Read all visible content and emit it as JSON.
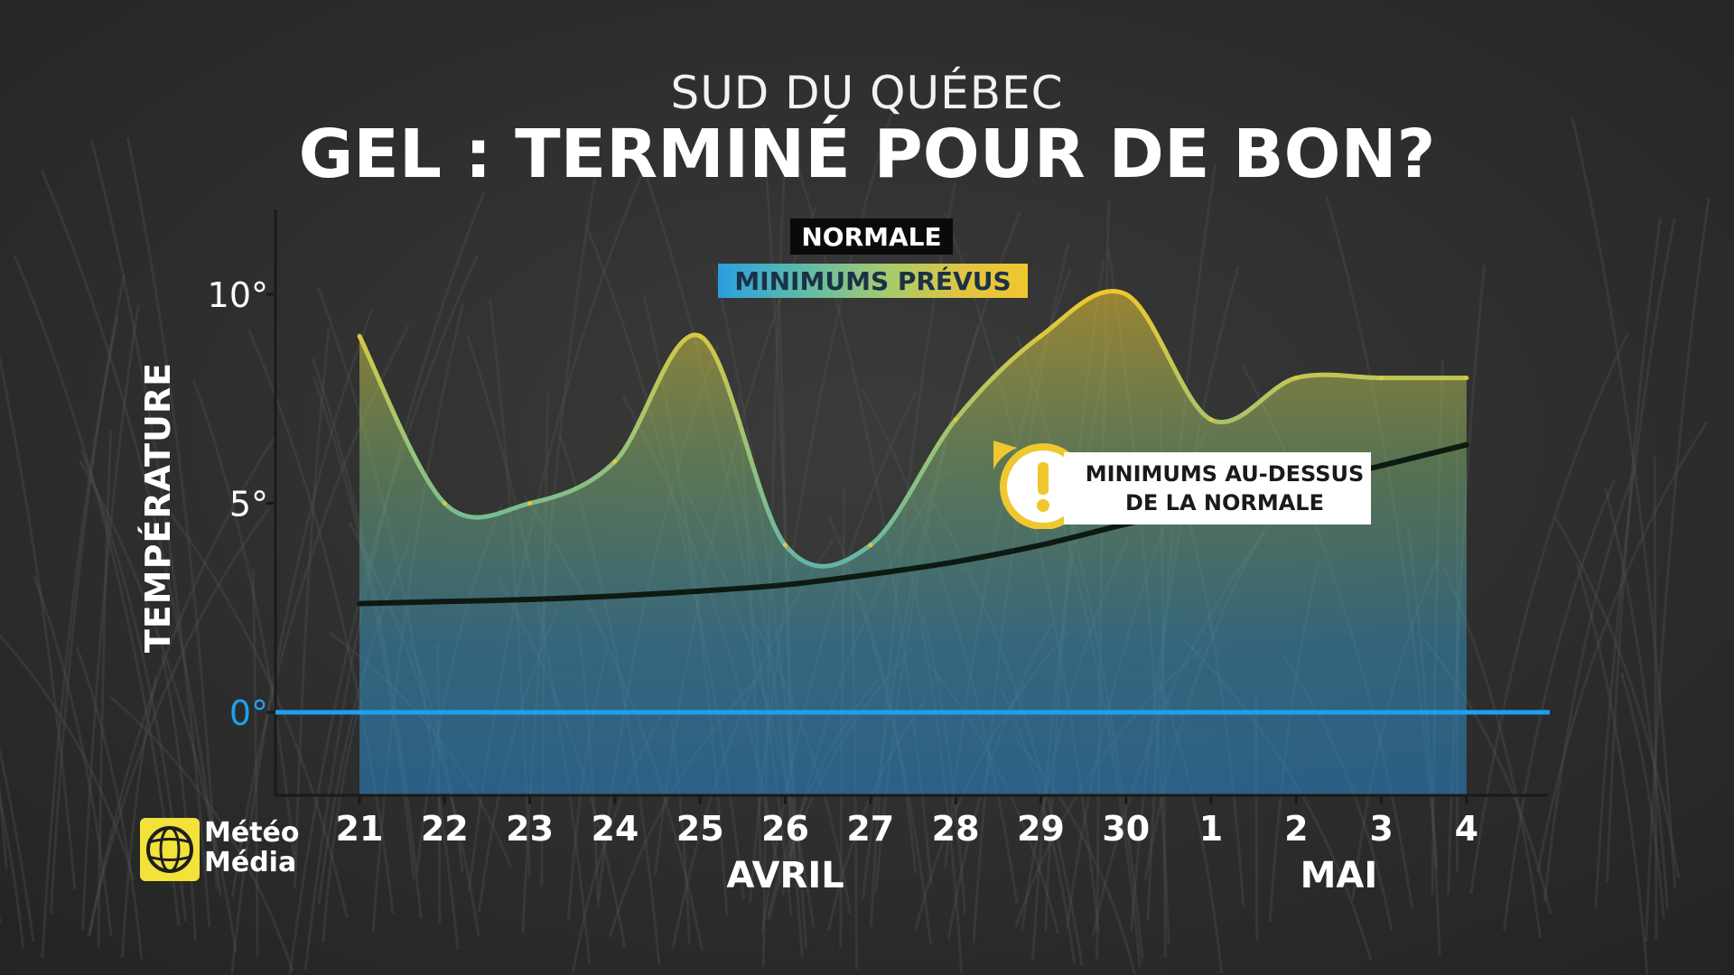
{
  "header": {
    "subtitle": "SUD DU QUÉBEC",
    "title": "GEL : TERMINÉ POUR DE BON?"
  },
  "legend": {
    "normale": "NORMALE",
    "minimums": "MINIMUMS PRÉVUS"
  },
  "callout": {
    "line1": "MINIMUMS AU-DESSUS",
    "line2": "DE LA NORMALE",
    "icon": "exclamation-icon",
    "icon_color": "#efc72f"
  },
  "logo": {
    "line1": "Météo",
    "line2": "Média",
    "icon": "globe-icon",
    "color": "#f2e23a"
  },
  "chart_data": {
    "type": "area",
    "title": "GEL : TERMINÉ POUR DE BON?",
    "subtitle": "SUD DU QUÉBEC",
    "ylabel": "TEMPÉRATURE",
    "xlabel": "",
    "ylim": [
      -2,
      12
    ],
    "yticks": [
      {
        "value": 10,
        "label": "10°"
      },
      {
        "value": 5,
        "label": "5°"
      },
      {
        "value": 0,
        "label": "0°"
      }
    ],
    "categories": [
      "21",
      "22",
      "23",
      "24",
      "25",
      "26",
      "27",
      "28",
      "29",
      "30",
      "1",
      "2",
      "3",
      "4"
    ],
    "month_labels": [
      {
        "label": "AVRIL",
        "center_index": 5
      },
      {
        "label": "MAI",
        "center_index": 11.5
      }
    ],
    "series": [
      {
        "name": "MINIMUMS PRÉVUS",
        "values": [
          9,
          5,
          5,
          6,
          9,
          4,
          4,
          7,
          9,
          10,
          7,
          8,
          8,
          8
        ]
      },
      {
        "name": "NORMALE",
        "values": [
          2.6,
          2.65,
          2.7,
          2.78,
          2.9,
          3.05,
          3.3,
          3.6,
          4.0,
          4.5,
          4.95,
          5.4,
          5.9,
          6.4
        ]
      }
    ],
    "zero_line": {
      "value": 0,
      "color": "#1f9ff0"
    },
    "colors": {
      "normale": "#0d1a12",
      "minimums_top": "#efc72f",
      "minimums_bottom": "#2a9fe0"
    },
    "legend_position": "top-center",
    "grid": false
  }
}
